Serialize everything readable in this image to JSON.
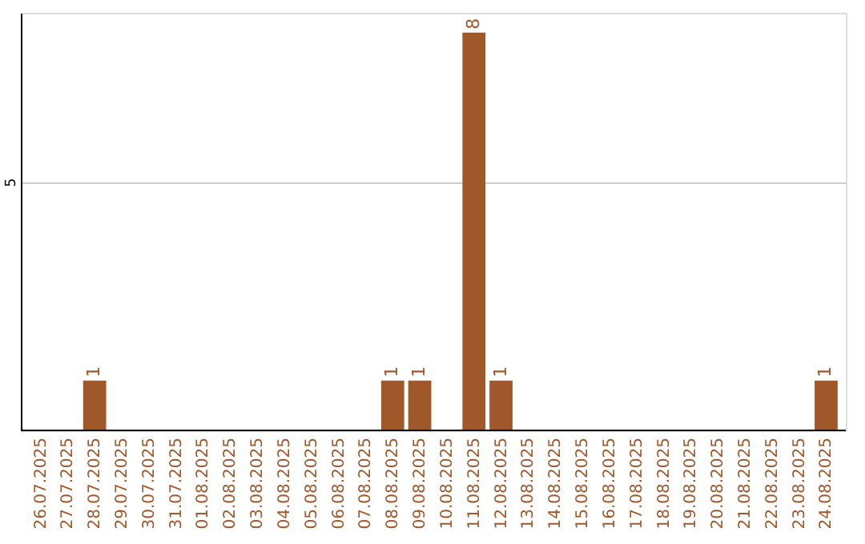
{
  "chart_data": {
    "type": "bar",
    "categories": [
      "26.07.2025",
      "27.07.2025",
      "28.07.2025",
      "29.07.2025",
      "30.07.2025",
      "31.07.2025",
      "01.08.2025",
      "02.08.2025",
      "03.08.2025",
      "04.08.2025",
      "05.08.2025",
      "06.08.2025",
      "07.08.2025",
      "08.08.2025",
      "09.08.2025",
      "10.08.2025",
      "11.08.2025",
      "12.08.2025",
      "13.08.2025",
      "14.08.2025",
      "15.08.2025",
      "16.08.2025",
      "17.08.2025",
      "18.08.2025",
      "19.08.2025",
      "20.08.2025",
      "21.08.2025",
      "22.08.2025",
      "23.08.2025",
      "24.08.2025"
    ],
    "values": [
      0,
      0,
      1,
      0,
      0,
      0,
      0,
      0,
      0,
      0,
      0,
      0,
      0,
      1,
      1,
      0,
      8,
      1,
      0,
      0,
      0,
      0,
      0,
      0,
      0,
      0,
      0,
      0,
      0,
      1
    ],
    "value_labels": [
      null,
      null,
      "1",
      null,
      null,
      null,
      null,
      null,
      null,
      null,
      null,
      null,
      null,
      "1",
      "1",
      null,
      "8",
      "1",
      null,
      null,
      null,
      null,
      null,
      null,
      null,
      null,
      null,
      null,
      null,
      "1"
    ],
    "color": "#a0572a",
    "ylim": [
      0,
      8.4
    ],
    "yticks": [
      5
    ],
    "grid": "y"
  }
}
